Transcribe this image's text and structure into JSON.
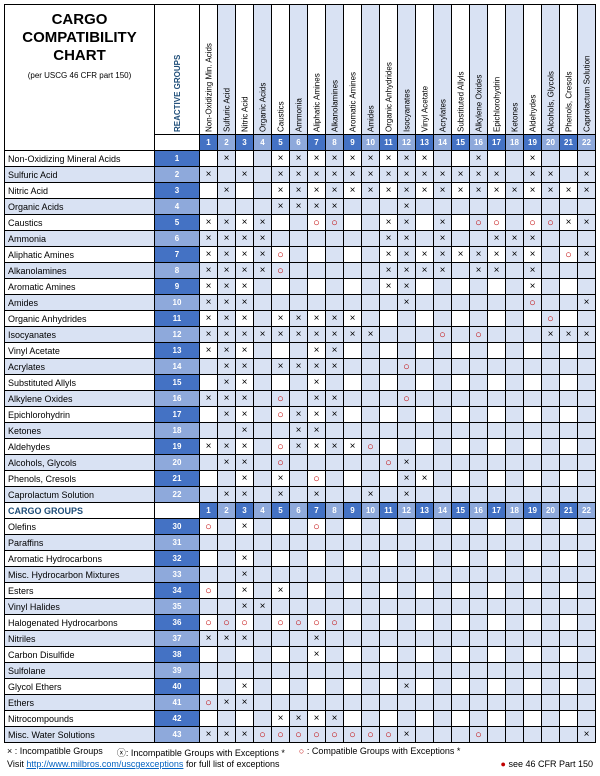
{
  "title_l1": "CARGO",
  "title_l2": "COMPATIBILITY",
  "title_l3": "CHART",
  "subtitle": "(per USCG 46 CFR part 150)",
  "reactive_header": "REACTIVE GROUPS",
  "cargo_header": "CARGO GROUPS",
  "col_labels": [
    "Non-Oxidizing Min. Acids",
    "Sulfuric Acid",
    "Nitric Acid",
    "Organic Acids",
    "Caustics",
    "Ammonia",
    "Aliphatic Amines",
    "Alkanolamines",
    "Aromatic Amines",
    "Amides",
    "Organic Anhydrides",
    "Isocyanates",
    "Vinyl Acetate",
    "Acrylates",
    "Substituted Allyls",
    "Alkylene Oxides",
    "Epichlorohydrin",
    "Ketones",
    "Aldehydes",
    "Alcohols, Glycols",
    "Phenols, Cresols",
    "Caprolactum Solution"
  ],
  "col_nums": [
    1,
    2,
    3,
    4,
    5,
    6,
    7,
    8,
    9,
    10,
    11,
    12,
    13,
    14,
    15,
    16,
    17,
    18,
    19,
    20,
    21,
    22
  ],
  "reactive_rows": [
    {
      "n": 1,
      "label": "Non-Oxidizing Mineral Acids",
      "c": [
        "",
        "x",
        "",
        "",
        "x",
        "x",
        "x",
        "x",
        "x",
        "x",
        "x",
        "x",
        "x",
        "",
        "",
        "x",
        "",
        "",
        "x",
        "",
        "",
        ""
      ]
    },
    {
      "n": 2,
      "label": "Sulfuric Acid",
      "c": [
        "x",
        "",
        "x",
        "",
        "x",
        "x",
        "x",
        "x",
        "x",
        "x",
        "x",
        "x",
        "x",
        "x",
        "x",
        "x",
        "x",
        "",
        "x",
        "x",
        "",
        "x"
      ]
    },
    {
      "n": 3,
      "label": "Nitric Acid",
      "c": [
        "",
        "x",
        "",
        "",
        "x",
        "x",
        "x",
        "x",
        "x",
        "x",
        "x",
        "x",
        "x",
        "x",
        "x",
        "x",
        "x",
        "x",
        "x",
        "x",
        "x",
        "x"
      ]
    },
    {
      "n": 4,
      "label": "Organic Acids",
      "c": [
        "",
        "",
        "",
        "",
        "x",
        "x",
        "x",
        "x",
        "",
        "",
        "",
        "x",
        "",
        "",
        "",
        "",
        "",
        "",
        "",
        "",
        "",
        ""
      ]
    },
    {
      "n": 5,
      "label": "Caustics",
      "c": [
        "x",
        "x",
        "x",
        "x",
        "",
        "",
        "O",
        "O",
        "",
        "",
        "x",
        "x",
        "",
        "x",
        "",
        "O",
        "O",
        "",
        "O",
        "O",
        "x",
        "x"
      ]
    },
    {
      "n": 6,
      "label": "Ammonia",
      "c": [
        "x",
        "x",
        "x",
        "x",
        "",
        "",
        "",
        "",
        "",
        "",
        "x",
        "x",
        "",
        "x",
        "",
        "",
        "x",
        "x",
        "x",
        "",
        "",
        ""
      ]
    },
    {
      "n": 7,
      "label": "Aliphatic Amines",
      "c": [
        "x",
        "x",
        "x",
        "x",
        "O",
        "",
        "",
        "",
        "",
        "",
        "x",
        "x",
        "x",
        "x",
        "x",
        "x",
        "x",
        "x",
        "x",
        "",
        "O",
        "x"
      ]
    },
    {
      "n": 8,
      "label": "Alkanolamines",
      "c": [
        "x",
        "x",
        "x",
        "x",
        "O",
        "",
        "",
        "",
        "",
        "",
        "x",
        "x",
        "x",
        "x",
        "",
        "x",
        "x",
        "",
        "x",
        "",
        "",
        ""
      ]
    },
    {
      "n": 9,
      "label": "Aromatic Amines",
      "c": [
        "x",
        "x",
        "x",
        "",
        "",
        "",
        "",
        "",
        "",
        "",
        "x",
        "x",
        "",
        "",
        "",
        "",
        "",
        "",
        "x",
        "",
        "",
        ""
      ]
    },
    {
      "n": 10,
      "label": "Amides",
      "c": [
        "x",
        "x",
        "x",
        "",
        "",
        "",
        "",
        "",
        "",
        "",
        "",
        "x",
        "",
        "",
        "",
        "",
        "",
        "",
        "O",
        "",
        "",
        "x"
      ]
    },
    {
      "n": 11,
      "label": "Organic Anhydrides",
      "c": [
        "x",
        "x",
        "x",
        "",
        "x",
        "x",
        "x",
        "x",
        "x",
        "",
        "",
        "",
        "",
        "",
        "",
        "",
        "",
        "",
        "",
        "O",
        "",
        ""
      ]
    },
    {
      "n": 12,
      "label": "Isocyanates",
      "c": [
        "x",
        "x",
        "x",
        "x",
        "x",
        "x",
        "x",
        "x",
        "x",
        "x",
        "",
        "",
        "",
        "O",
        "",
        "O",
        "",
        "",
        "",
        "x",
        "x",
        "x"
      ]
    },
    {
      "n": 13,
      "label": "Vinyl Acetate",
      "c": [
        "x",
        "x",
        "x",
        "",
        "",
        "",
        "x",
        "x",
        "",
        "",
        "",
        "",
        "",
        "",
        "",
        "",
        "",
        "",
        "",
        "",
        "",
        ""
      ]
    },
    {
      "n": 14,
      "label": "Acrylates",
      "c": [
        "",
        "x",
        "x",
        "",
        "x",
        "x",
        "x",
        "x",
        "",
        "",
        "",
        "O",
        "",
        "",
        "",
        "",
        "",
        "",
        "",
        "",
        "",
        ""
      ]
    },
    {
      "n": 15,
      "label": "Substituted Allyls",
      "c": [
        "",
        "x",
        "x",
        "",
        "",
        "",
        "x",
        "",
        "",
        "",
        "",
        "",
        "",
        "",
        "",
        "",
        "",
        "",
        "",
        "",
        "",
        ""
      ]
    },
    {
      "n": 16,
      "label": "Alkylene Oxides",
      "c": [
        "x",
        "x",
        "x",
        "",
        "O",
        "",
        "x",
        "x",
        "",
        "",
        "",
        "O",
        "",
        "",
        "",
        "",
        "",
        "",
        "",
        "",
        "",
        ""
      ]
    },
    {
      "n": 17,
      "label": "Epichlorohydrin",
      "c": [
        "",
        "x",
        "x",
        "",
        "O",
        "x",
        "x",
        "x",
        "",
        "",
        "",
        "",
        "",
        "",
        "",
        "",
        "",
        "",
        "",
        "",
        "",
        ""
      ]
    },
    {
      "n": 18,
      "label": "Ketones",
      "c": [
        "",
        "",
        "x",
        "",
        "",
        "x",
        "x",
        "",
        "",
        "",
        "",
        "",
        "",
        "",
        "",
        "",
        "",
        "",
        "",
        "",
        "",
        ""
      ]
    },
    {
      "n": 19,
      "label": "Aldehydes",
      "c": [
        "x",
        "x",
        "x",
        "",
        "O",
        "x",
        "x",
        "x",
        "x",
        "O",
        "",
        "",
        "",
        "",
        "",
        "",
        "",
        "",
        "",
        "",
        "",
        ""
      ]
    },
    {
      "n": 20,
      "label": "Alcohols, Glycols",
      "c": [
        "",
        "x",
        "x",
        "",
        "O",
        "",
        "",
        "",
        "",
        "",
        "O",
        "x",
        "",
        "",
        "",
        "",
        "",
        "",
        "",
        "",
        "",
        ""
      ]
    },
    {
      "n": 21,
      "label": "Phenols, Cresols",
      "c": [
        "",
        "",
        "x",
        "",
        "x",
        "",
        "O",
        "",
        "",
        "",
        "",
        "x",
        "x",
        "",
        "",
        "",
        "",
        "",
        "",
        "",
        "",
        ""
      ]
    },
    {
      "n": 22,
      "label": "Caprolactum Solution",
      "c": [
        "",
        "x",
        "x",
        "",
        "x",
        "",
        "x",
        "",
        "",
        "x",
        "",
        "x",
        "",
        "",
        "",
        "",
        "",
        "",
        "",
        "",
        "",
        ""
      ]
    }
  ],
  "cargo_rows": [
    {
      "n": 30,
      "label": "Olefins",
      "c": [
        "O",
        "",
        "x",
        "",
        "",
        "",
        "O",
        "",
        "",
        "",
        "",
        "",
        "",
        "",
        "",
        "",
        "",
        "",
        "",
        "",
        "",
        ""
      ]
    },
    {
      "n": 31,
      "label": "Paraffins",
      "c": [
        "",
        "",
        "",
        "",
        "",
        "",
        "",
        "",
        "",
        "",
        "",
        "",
        "",
        "",
        "",
        "",
        "",
        "",
        "",
        "",
        "",
        ""
      ]
    },
    {
      "n": 32,
      "label": "Aromatic Hydrocarbons",
      "c": [
        "",
        "",
        "x",
        "",
        "",
        "",
        "",
        "",
        "",
        "",
        "",
        "",
        "",
        "",
        "",
        "",
        "",
        "",
        "",
        "",
        "",
        ""
      ]
    },
    {
      "n": 33,
      "label": "Misc. Hydrocarbon Mixtures",
      "c": [
        "",
        "",
        "x",
        "",
        "",
        "",
        "",
        "",
        "",
        "",
        "",
        "",
        "",
        "",
        "",
        "",
        "",
        "",
        "",
        "",
        "",
        ""
      ]
    },
    {
      "n": 34,
      "label": "Esters",
      "c": [
        "O",
        "",
        "x",
        "",
        "x",
        "",
        "",
        "",
        "",
        "",
        "",
        "",
        "",
        "",
        "",
        "",
        "",
        "",
        "",
        "",
        "",
        ""
      ]
    },
    {
      "n": 35,
      "label": "Vinyl Halides",
      "c": [
        "",
        "",
        "x",
        "x",
        "",
        "",
        "",
        "",
        "",
        "",
        "",
        "",
        "",
        "",
        "",
        "",
        "",
        "",
        "",
        "",
        "",
        ""
      ]
    },
    {
      "n": 36,
      "label": "Halogenated Hydrocarbons",
      "c": [
        "O",
        "O",
        "O",
        "",
        "O",
        "O",
        "O",
        "O",
        "",
        "",
        "",
        "",
        "",
        "",
        "",
        "",
        "",
        "",
        "",
        "",
        "",
        ""
      ]
    },
    {
      "n": 37,
      "label": "Nitriles",
      "c": [
        "x",
        "x",
        "x",
        "",
        "",
        "",
        "x",
        "",
        "",
        "",
        "",
        "",
        "",
        "",
        "",
        "",
        "",
        "",
        "",
        "",
        "",
        ""
      ]
    },
    {
      "n": 38,
      "label": "Carbon Disulfide",
      "c": [
        "",
        "",
        "",
        "",
        "",
        "",
        "x",
        "",
        "",
        "",
        "",
        "",
        "",
        "",
        "",
        "",
        "",
        "",
        "",
        "",
        "",
        ""
      ]
    },
    {
      "n": 39,
      "label": "Sulfolane",
      "c": [
        "",
        "",
        "",
        "",
        "",
        "",
        "",
        "",
        "",
        "",
        "",
        "",
        "",
        "",
        "",
        "",
        "",
        "",
        "",
        "",
        "",
        ""
      ]
    },
    {
      "n": 40,
      "label": "Glycol Ethers",
      "c": [
        "",
        "",
        "x",
        "",
        "",
        "",
        "",
        "",
        "",
        "",
        "",
        "x",
        "",
        "",
        "",
        "",
        "",
        "",
        "",
        "",
        "",
        ""
      ]
    },
    {
      "n": 41,
      "label": "Ethers",
      "c": [
        "O",
        "x",
        "x",
        "",
        "",
        "",
        "",
        "",
        "",
        "",
        "",
        "",
        "",
        "",
        "",
        "",
        "",
        "",
        "",
        "",
        "",
        ""
      ]
    },
    {
      "n": 42,
      "label": "Nitrocompounds",
      "c": [
        "",
        "",
        "",
        "",
        "x",
        "x",
        "x",
        "x",
        "",
        "",
        "",
        "",
        "",
        "",
        "",
        "",
        "",
        "",
        "",
        "",
        "",
        ""
      ]
    },
    {
      "n": 43,
      "label": "Misc. Water Solutions",
      "c": [
        "x",
        "x",
        "x",
        "O",
        "O",
        "O",
        "O",
        "O",
        "O",
        "O",
        "O",
        "x",
        "",
        "",
        "",
        "O",
        "",
        "",
        "",
        "",
        "",
        "x"
      ]
    }
  ],
  "legend": {
    "x": "× : Incompatible Groups",
    "ox": "ⓧ: Incompatible Groups with Exceptions *",
    "o": "○ : Compatible Groups with Exceptions *",
    "visit": "Visit",
    "url": "http://www.milbros.com/uscgexceptions",
    "visit2": "for full list of exceptions",
    "see": "see 46 CFR Part 150"
  },
  "colors": {
    "header_blue": "#4472c4",
    "header_blue_alt": "#8ea9db",
    "shade": "#d9e2f3",
    "section_text": "#1f4e79",
    "red": "#c00000"
  }
}
